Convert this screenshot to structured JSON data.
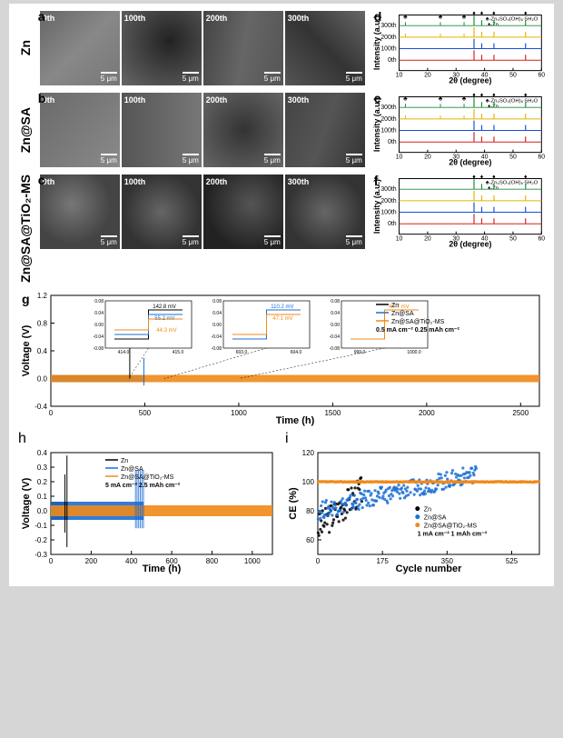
{
  "sem_rows": [
    {
      "panel": "a",
      "sample": "Zn",
      "cycles": [
        "0th",
        "100th",
        "200th",
        "300th"
      ],
      "scale": "5 μm",
      "bg": [
        "linear-gradient(135deg,#666,#888,#777)",
        "radial-gradient(circle at 60% 40%,#222,#666)",
        "linear-gradient(100deg,#444,#666,#555)",
        "linear-gradient(45deg,#555,#333,#666)"
      ]
    },
    {
      "panel": "b",
      "sample": "Zn@SA",
      "cycles": [
        "0th",
        "100th",
        "200th",
        "300th"
      ],
      "scale": "5 μm",
      "bg": [
        "linear-gradient(130deg,#6a6a6a,#8a8a8a)",
        "linear-gradient(90deg,#555,#777)",
        "radial-gradient(circle at 50% 50%,#333,#666)",
        "linear-gradient(110deg,#444,#555,#333)"
      ]
    },
    {
      "panel": "c",
      "sample": "Zn@SA@TiO₂-MS",
      "cycles": [
        "0th",
        "100th",
        "200th",
        "300th"
      ],
      "scale": "5 μm",
      "bg": [
        "radial-gradient(circle at 40% 40%,#777,#444 60%)",
        "radial-gradient(circle at 50% 50%,#666,#333 70%)",
        "radial-gradient(circle at 60% 40%,#555,#222 70%)",
        "radial-gradient(circle at 50% 50%,#666,#333 70%)"
      ]
    }
  ],
  "xrd_common": {
    "xlabel": "2θ (degree)",
    "ylabel": "Intensity (a.u.)",
    "xticks": [
      10,
      20,
      30,
      40,
      50,
      60
    ],
    "legend1": "♣-Zn₄SO₄(OH)₆·5H₂O",
    "legend2": "♦-Zn",
    "traces": [
      {
        "label": "300th",
        "color": "#1a8c3a",
        "y": 13
      },
      {
        "label": "200th",
        "color": "#e6b400",
        "y": 30
      },
      {
        "label": "100th",
        "color": "#1a4fd6",
        "y": 47
      },
      {
        "label": "0th",
        "color": "#d62020",
        "y": 64
      }
    ],
    "peaks_zn": [
      36.3,
      39,
      43.3,
      54.4
    ],
    "peaks_zhs": [
      12.2,
      24.5,
      32.8
    ],
    "label_fontsize": 9,
    "tick_fontsize": 7,
    "trace_fontsize": 7
  },
  "xrd_panels": [
    {
      "panel": "d",
      "show_zhs": true
    },
    {
      "panel": "e",
      "show_zhs": true
    },
    {
      "panel": "f",
      "show_zhs": false
    }
  ],
  "panel_g": {
    "panel": "g",
    "xlabel": "Time (h)",
    "ylabel": "Voltage (V)",
    "xlim": [
      0,
      2600
    ],
    "xtick_step": 500,
    "ylim": [
      -0.4,
      1.2
    ],
    "yticks": [
      -0.4,
      0.0,
      0.4,
      0.8,
      1.2
    ],
    "series": [
      {
        "name": "Zn",
        "color": "#000000",
        "end": 420
      },
      {
        "name": "Zn@SA",
        "color": "#1a6fd6",
        "end": 500
      },
      {
        "name": "Zn@SA@TiO₂-MS",
        "color": "#f08a1a",
        "end": 2600
      }
    ],
    "cond": "0.5 mA cm⁻²  0.25 mAh cm⁻²",
    "insets": [
      {
        "x": [
          414,
          415
        ],
        "vals": {
          "black": "142.8 mV",
          "blue": "55.2 mV",
          "orange": "44.3 mV"
        }
      },
      {
        "x": [
          603,
          604
        ],
        "vals": {
          "blue": "110.2 mV",
          "orange": "47.1 mV"
        }
      },
      {
        "x": [
          999,
          1000
        ],
        "vals": {
          "orange": "47.7 mV"
        }
      }
    ],
    "inset_yticks": [
      -0.08,
      -0.04,
      0.0,
      0.04,
      0.08
    ]
  },
  "panel_h": {
    "panel": "h",
    "xlabel": "Time (h)",
    "ylabel": "Voltage (V)",
    "xlim": [
      0,
      1100
    ],
    "xtick_step": 200,
    "ylim": [
      -0.3,
      0.4
    ],
    "yticks": [
      -0.3,
      -0.2,
      -0.1,
      0.0,
      0.1,
      0.2,
      0.3,
      0.4
    ],
    "series": [
      {
        "name": "Zn",
        "color": "#000000",
        "end": 85
      },
      {
        "name": "Zn@SA",
        "color": "#1a6fd6",
        "end": 460
      },
      {
        "name": "Zn@SA@TiO₂-MS",
        "color": "#f08a1a",
        "end": 1100
      }
    ],
    "cond": "5 mA cm⁻²  2.5 mAh cm⁻²"
  },
  "panel_i": {
    "panel": "i",
    "xlabel": "Cycle number",
    "ylabel": "CE (%)",
    "xlim": [
      0,
      600
    ],
    "xticks": [
      0,
      175,
      350,
      525
    ],
    "ylim": [
      50,
      120
    ],
    "ytick_step": 20,
    "series": [
      {
        "name": "Zn",
        "color": "#000000",
        "n": 120,
        "scatter_y0": 68,
        "scatter_rise": 0.22,
        "noise": 10
      },
      {
        "name": "Zn@SA",
        "color": "#1a6fd6",
        "n": 430,
        "scatter_y0": 80,
        "scatter_rise": 0.06,
        "noise": 6
      },
      {
        "name": "Zn@SA@TiO₂-MS",
        "color": "#f08a1a",
        "n": 600,
        "scatter_y0": 99.9,
        "scatter_rise": 0,
        "noise": 0.3
      }
    ],
    "cond": "1 mA cm⁻²  1 mAh cm⁻²"
  },
  "colors": {
    "axis": "#000000",
    "bg": "#ffffff"
  }
}
